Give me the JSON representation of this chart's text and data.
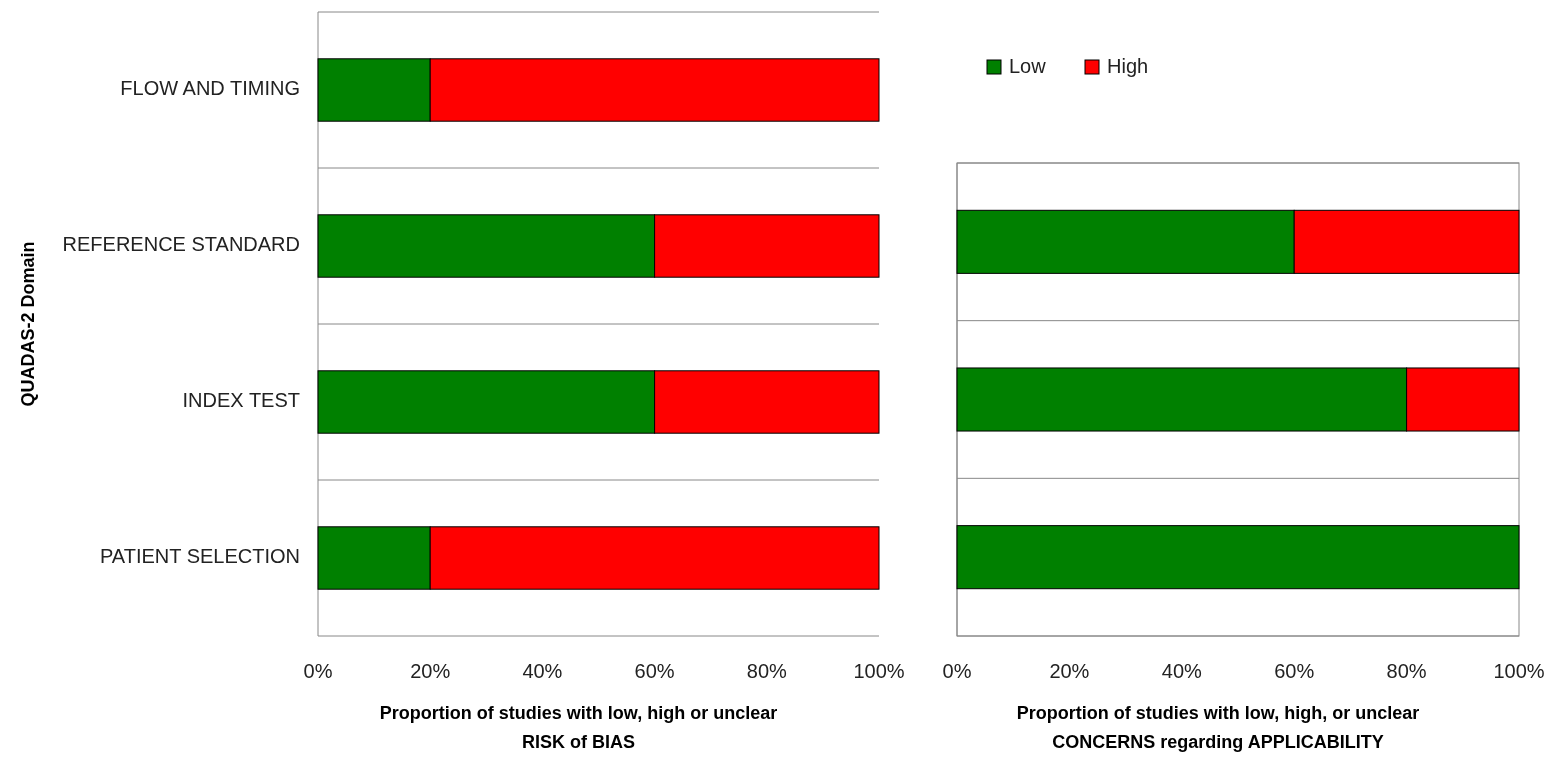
{
  "chart_data": [
    {
      "type": "bar",
      "orientation": "horizontal",
      "stacked": true,
      "ylabel": "QUADAS-2 Domain",
      "xlabel": "Proportion of studies with low, high or unclear\nRISK of BIAS",
      "categories": [
        "FLOW AND TIMING",
        "REFERENCE STANDARD",
        "INDEX TEST",
        "PATIENT SELECTION"
      ],
      "series": [
        {
          "color": "#008000",
          "values": [
            20,
            60,
            60,
            20
          ]
        },
        {
          "color": "#ff0000",
          "values": [
            80,
            40,
            40,
            80
          ]
        }
      ],
      "xlim": [
        0,
        100
      ],
      "xticks": [
        {
          "value": 0,
          "label": "0%"
        },
        {
          "value": 20,
          "label": "20%"
        },
        {
          "value": 40,
          "label": "40%"
        },
        {
          "value": 60,
          "label": "60%"
        },
        {
          "value": 80,
          "label": "80%"
        },
        {
          "value": 100,
          "label": "100%"
        }
      ],
      "grid": "y",
      "legend": false
    },
    {
      "type": "bar",
      "orientation": "horizontal",
      "stacked": true,
      "xlabel": "Proportion of studies with low, high, or unclear\nCONCERNS regarding APPLICABILITY",
      "categories": [
        null,
        null,
        null
      ],
      "series": [
        {
          "name": "Low",
          "color": "#008000",
          "values": [
            60,
            80,
            100
          ]
        },
        {
          "name": "High",
          "color": "#ff0000",
          "values": [
            40,
            20,
            0
          ]
        }
      ],
      "xlim": [
        0,
        100
      ],
      "xticks": [
        {
          "value": 0,
          "label": "0%"
        },
        {
          "value": 20,
          "label": "20%"
        },
        {
          "value": 40,
          "label": "40%"
        },
        {
          "value": 60,
          "label": "60%"
        },
        {
          "value": 80,
          "label": "80%"
        },
        {
          "value": 100,
          "label": "100%"
        }
      ],
      "grid": "y",
      "legend": "top",
      "tick_labels": "x"
    }
  ]
}
